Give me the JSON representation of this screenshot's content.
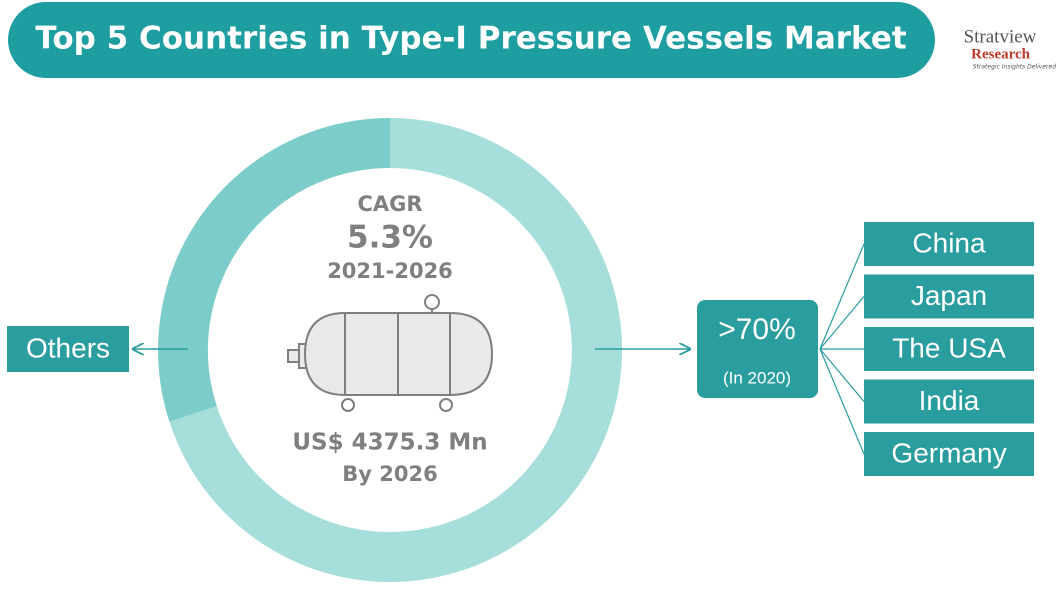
{
  "header": {
    "title": "Top 5 Countries in Type-I Pressure Vessels Market"
  },
  "logo": {
    "name": "Stratview",
    "sub": "Research",
    "tagline": "Strategic Insights Delivered"
  },
  "center": {
    "cagr_label": "CAGR",
    "cagr_value": "5.3%",
    "period": "2021-2026",
    "market_size": "US$ 4375.3 Mn",
    "year": "By 2026"
  },
  "others": {
    "label": "Others"
  },
  "top": {
    "share": ">70%",
    "year": "(In 2020)",
    "countries": [
      "China",
      "Japan",
      "The USA",
      "India",
      "Germany"
    ]
  }
}
